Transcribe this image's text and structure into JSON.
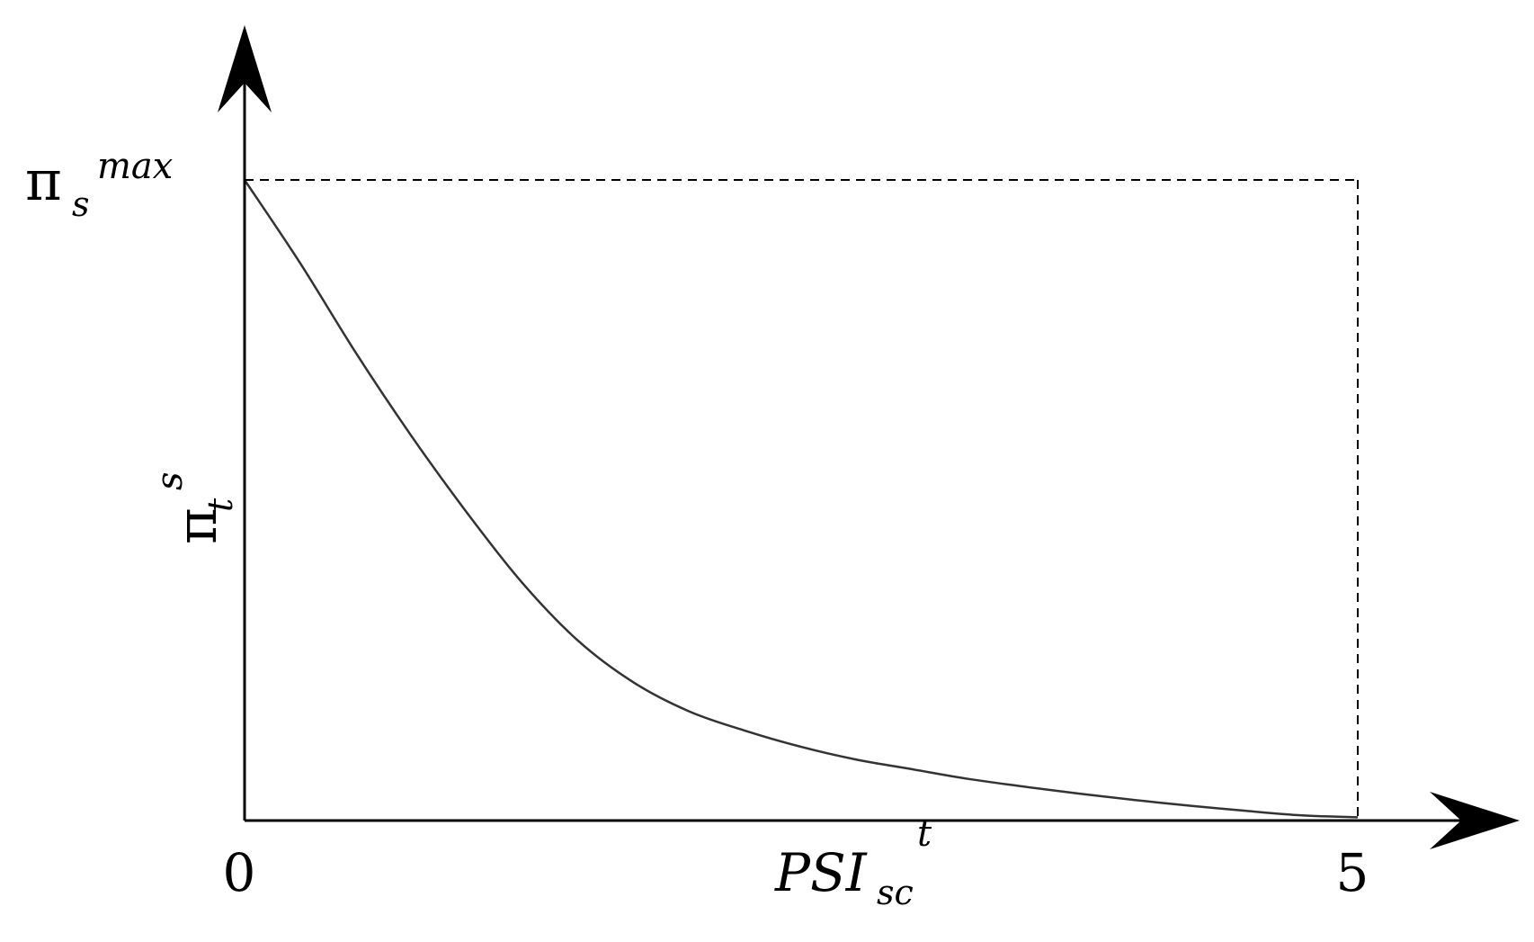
{
  "chart_data": {
    "type": "line",
    "title": "",
    "xlabel": {
      "base": "PSI",
      "subscript": "sc",
      "superscript": "t"
    },
    "ylabel": {
      "base": "π",
      "subscript": "t",
      "superscript": "s"
    },
    "ymax_label": {
      "base": "π",
      "subscript": "s",
      "superscript": "max"
    },
    "x_ticks": [
      "0",
      "5"
    ],
    "xlim": [
      0,
      5
    ],
    "ylim": [
      0,
      1
    ],
    "grid": false,
    "series": [
      {
        "x": [
          0,
          0.25,
          0.5,
          0.75,
          1.0,
          1.25,
          1.5,
          1.75,
          2.0,
          2.25,
          2.5,
          2.75,
          3.0,
          3.25,
          3.5,
          3.75,
          4.0,
          4.25,
          4.5,
          4.75,
          5.0
        ],
        "y": [
          1.0,
          0.87,
          0.73,
          0.6,
          0.48,
          0.37,
          0.28,
          0.215,
          0.17,
          0.14,
          0.115,
          0.095,
          0.08,
          0.065,
          0.053,
          0.042,
          0.032,
          0.023,
          0.015,
          0.008,
          0.005
        ]
      }
    ],
    "reference_lines": [
      {
        "orientation": "horizontal",
        "y": 1.0,
        "style": "dashed"
      },
      {
        "orientation": "vertical",
        "x": 5.0,
        "style": "dashed"
      }
    ],
    "colors": {
      "curve": "#333333",
      "axis": "#000000",
      "dashed": "#000000"
    }
  }
}
